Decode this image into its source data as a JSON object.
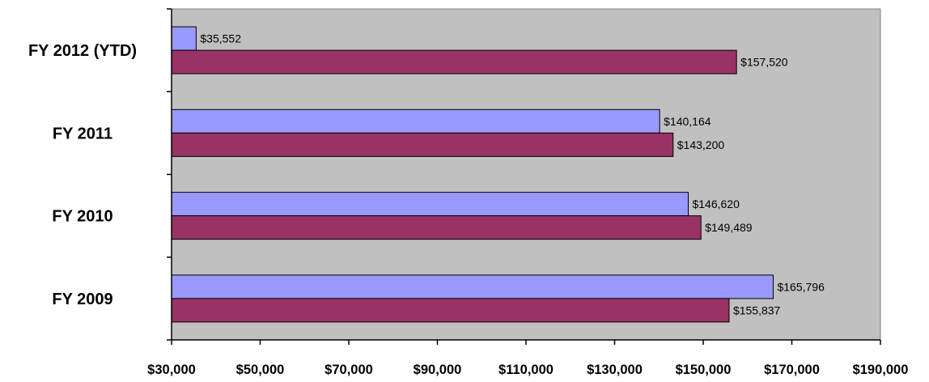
{
  "chart_data": {
    "type": "bar",
    "orientation": "horizontal",
    "categories": [
      "FY 2009",
      "FY 2010",
      "FY 2011",
      "FY 2012 (YTD)"
    ],
    "series": [
      {
        "values": [
          165796,
          146620,
          140164,
          35552
        ],
        "labels": [
          "$165,796",
          "$146,620",
          "$140,164",
          "$35,552"
        ],
        "color": "#9999ff"
      },
      {
        "values": [
          155837,
          149489,
          143200,
          157520
        ],
        "labels": [
          "$155,837",
          "$149,489",
          "$143,200",
          "$157,520"
        ],
        "color": "#993366"
      }
    ],
    "xlim": [
      30000,
      190000
    ],
    "ticks": [
      "$30,000",
      "$50,000",
      "$70,000",
      "$90,000",
      "$110,000",
      "$130,000",
      "$150,000",
      "$170,000",
      "$190,000"
    ],
    "plot_background": "#c0c0c0",
    "grid": false,
    "legend": "none"
  }
}
